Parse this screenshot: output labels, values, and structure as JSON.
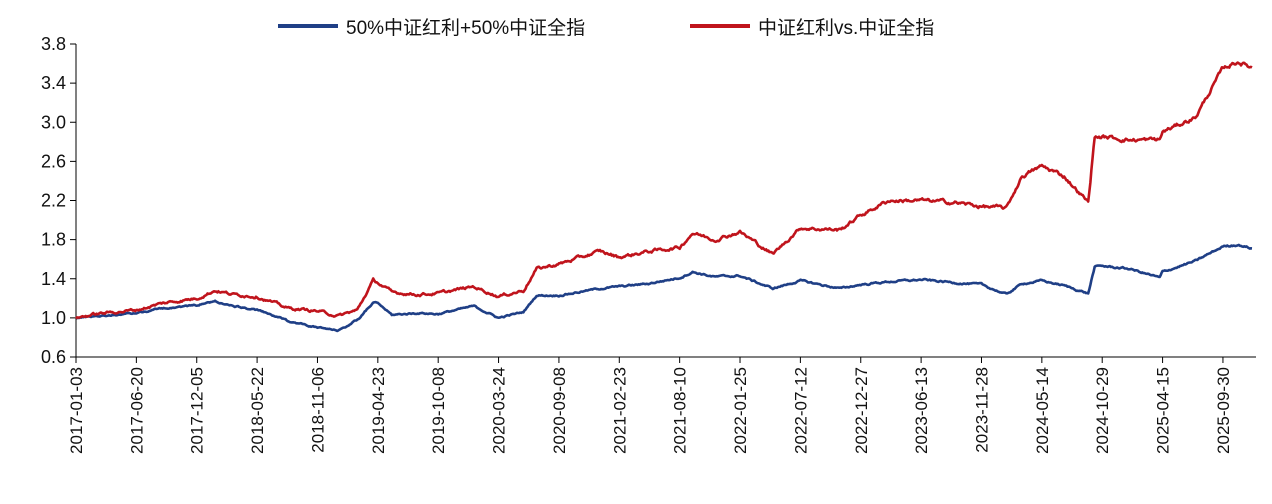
{
  "chart_data": {
    "type": "line",
    "ylim": [
      0.6,
      3.8
    ],
    "y_ticks": [
      "0.6",
      "1.0",
      "1.4",
      "1.8",
      "2.2",
      "2.6",
      "3.0",
      "3.4",
      "3.8"
    ],
    "x_tick_labels": [
      "2017-01-03",
      "2017-06-20",
      "2017-12-05",
      "2018-05-22",
      "2018-11-06",
      "2019-04-23",
      "2019-10-08",
      "2020-03-24",
      "2020-09-08",
      "2021-02-23",
      "2021-08-10",
      "2022-01-25",
      "2022-07-12",
      "2022-12-27",
      "2023-06-13",
      "2023-11-28",
      "2024-05-14",
      "2024-10-29",
      "2025-04-15",
      "2025-09-30"
    ],
    "grid": false,
    "legend_position": "top",
    "series": [
      {
        "name": "50%中证红利+50%中证全指",
        "color": "#1f3f86",
        "points": [
          [
            "2017-01-03",
            1.0
          ],
          [
            "2017-03-01",
            1.02
          ],
          [
            "2017-04-20",
            1.03
          ],
          [
            "2017-06-20",
            1.05
          ],
          [
            "2017-09-01",
            1.1
          ],
          [
            "2017-12-05",
            1.13
          ],
          [
            "2018-01-25",
            1.17
          ],
          [
            "2018-03-15",
            1.12
          ],
          [
            "2018-05-22",
            1.08
          ],
          [
            "2018-08-15",
            0.97
          ],
          [
            "2018-11-06",
            0.9
          ],
          [
            "2019-01-03",
            0.87
          ],
          [
            "2019-02-25",
            0.98
          ],
          [
            "2019-04-10",
            1.15
          ],
          [
            "2019-04-23",
            1.15
          ],
          [
            "2019-06-01",
            1.03
          ],
          [
            "2019-08-15",
            1.05
          ],
          [
            "2019-10-08",
            1.04
          ],
          [
            "2020-01-15",
            1.12
          ],
          [
            "2020-03-24",
            1.0
          ],
          [
            "2020-06-01",
            1.06
          ],
          [
            "2020-07-08",
            1.23
          ],
          [
            "2020-09-08",
            1.23
          ],
          [
            "2020-12-31",
            1.3
          ],
          [
            "2021-02-23",
            1.32
          ],
          [
            "2021-05-15",
            1.35
          ],
          [
            "2021-08-10",
            1.41
          ],
          [
            "2021-09-15",
            1.47
          ],
          [
            "2021-11-15",
            1.42
          ],
          [
            "2022-01-25",
            1.43
          ],
          [
            "2022-04-26",
            1.3
          ],
          [
            "2022-07-12",
            1.38
          ],
          [
            "2022-10-31",
            1.3
          ],
          [
            "2022-12-27",
            1.34
          ],
          [
            "2023-03-15",
            1.37
          ],
          [
            "2023-06-13",
            1.39
          ],
          [
            "2023-09-15",
            1.36
          ],
          [
            "2023-11-28",
            1.34
          ],
          [
            "2024-02-05",
            1.24
          ],
          [
            "2024-03-20",
            1.35
          ],
          [
            "2024-05-14",
            1.38
          ],
          [
            "2024-07-15",
            1.33
          ],
          [
            "2024-09-20",
            1.25
          ],
          [
            "2024-10-08",
            1.52
          ],
          [
            "2024-10-29",
            1.53
          ],
          [
            "2025-01-15",
            1.5
          ],
          [
            "2025-04-07",
            1.41
          ],
          [
            "2025-04-15",
            1.47
          ],
          [
            "2025-07-15",
            1.58
          ],
          [
            "2025-09-30",
            1.73
          ],
          [
            "2025-11-10",
            1.75
          ],
          [
            "2025-12-20",
            1.71
          ]
        ]
      },
      {
        "name": "中证红利vs.中证全指",
        "color": "#c0141c",
        "points": [
          [
            "2017-01-03",
            1.0
          ],
          [
            "2017-03-01",
            1.04
          ],
          [
            "2017-04-20",
            1.06
          ],
          [
            "2017-06-20",
            1.08
          ],
          [
            "2017-09-01",
            1.15
          ],
          [
            "2017-12-05",
            1.2
          ],
          [
            "2018-01-25",
            1.28
          ],
          [
            "2018-03-15",
            1.24
          ],
          [
            "2018-05-22",
            1.22
          ],
          [
            "2018-08-15",
            1.1
          ],
          [
            "2018-11-06",
            1.07
          ],
          [
            "2019-01-03",
            1.02
          ],
          [
            "2019-02-25",
            1.08
          ],
          [
            "2019-04-10",
            1.38
          ],
          [
            "2019-04-23",
            1.36
          ],
          [
            "2019-06-01",
            1.26
          ],
          [
            "2019-08-15",
            1.24
          ],
          [
            "2019-10-08",
            1.25
          ],
          [
            "2020-01-15",
            1.32
          ],
          [
            "2020-03-24",
            1.22
          ],
          [
            "2020-06-01",
            1.28
          ],
          [
            "2020-07-08",
            1.5
          ],
          [
            "2020-09-08",
            1.55
          ],
          [
            "2020-12-31",
            1.68
          ],
          [
            "2021-02-23",
            1.62
          ],
          [
            "2021-05-15",
            1.68
          ],
          [
            "2021-08-10",
            1.72
          ],
          [
            "2021-09-15",
            1.87
          ],
          [
            "2021-11-15",
            1.8
          ],
          [
            "2022-01-25",
            1.88
          ],
          [
            "2022-04-26",
            1.65
          ],
          [
            "2022-07-12",
            1.92
          ],
          [
            "2022-10-31",
            1.9
          ],
          [
            "2022-12-27",
            2.05
          ],
          [
            "2023-03-15",
            2.2
          ],
          [
            "2023-06-13",
            2.2
          ],
          [
            "2023-09-15",
            2.18
          ],
          [
            "2023-11-28",
            2.14
          ],
          [
            "2024-02-05",
            2.12
          ],
          [
            "2024-03-20",
            2.45
          ],
          [
            "2024-05-14",
            2.55
          ],
          [
            "2024-07-15",
            2.45
          ],
          [
            "2024-09-20",
            2.18
          ],
          [
            "2024-10-08",
            2.85
          ],
          [
            "2024-10-29",
            2.85
          ],
          [
            "2025-01-15",
            2.82
          ],
          [
            "2025-04-07",
            2.82
          ],
          [
            "2025-04-15",
            2.9
          ],
          [
            "2025-07-15",
            3.05
          ],
          [
            "2025-09-30",
            3.55
          ],
          [
            "2025-11-10",
            3.62
          ],
          [
            "2025-12-20",
            3.56
          ]
        ]
      }
    ]
  }
}
